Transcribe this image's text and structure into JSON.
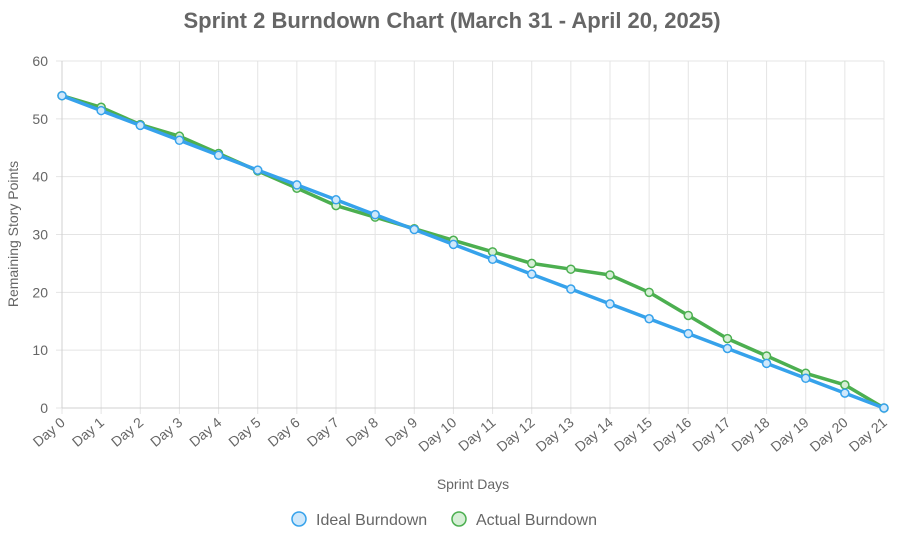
{
  "chart_data": {
    "type": "line",
    "title": "Sprint 2 Burndown Chart (March 31 - April 20, 2025)",
    "xlabel": "Sprint Days",
    "ylabel": "Remaining Story Points",
    "categories": [
      "Day 0",
      "Day 1",
      "Day 2",
      "Day 3",
      "Day 4",
      "Day 5",
      "Day 6",
      "Day 7",
      "Day 8",
      "Day 9",
      "Day 10",
      "Day 11",
      "Day 12",
      "Day 13",
      "Day 14",
      "Day 15",
      "Day 16",
      "Day 17",
      "Day 18",
      "Day 19",
      "Day 20",
      "Day 21"
    ],
    "ylim": [
      0,
      60
    ],
    "yticks": [
      "0",
      "10",
      "20",
      "30",
      "40",
      "50",
      "60"
    ],
    "grid": true,
    "legend_position": "bottom",
    "series": [
      {
        "name": "Ideal Burndown",
        "color": "#36a2eb",
        "fill": "#cfe8fb",
        "values": [
          54,
          51.43,
          48.86,
          46.29,
          43.71,
          41.14,
          38.57,
          36,
          33.43,
          30.86,
          28.29,
          25.71,
          23.14,
          20.57,
          18,
          15.43,
          12.86,
          10.29,
          7.71,
          5.14,
          2.57,
          0
        ]
      },
      {
        "name": "Actual Burndown",
        "color": "#4caf50",
        "fill": "#d6efd6",
        "values": [
          54,
          52,
          49,
          47,
          44,
          41,
          38,
          35,
          33,
          31,
          29,
          27,
          25,
          24,
          23,
          20,
          16,
          12,
          9,
          6,
          4,
          0
        ]
      }
    ]
  }
}
